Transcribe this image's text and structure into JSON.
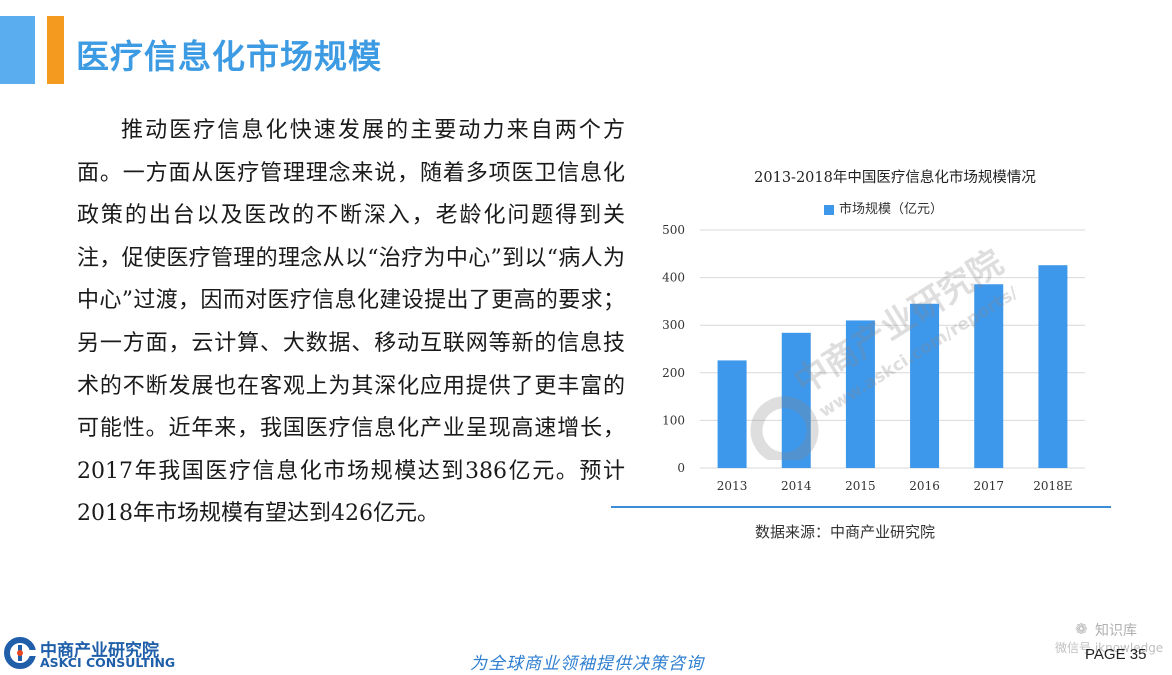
{
  "header": {
    "title": "医疗信息化市场规模"
  },
  "body": {
    "paragraph": "推动医疗信息化快速发展的主要动力来自两个方面。一方面从医疗管理理念来说，随着多项医卫信息化政策的出台以及医改的不断深入，老龄化问题得到关注，促使医疗管理的理念从以“治疗为中心”到以“病人为中心”过渡，因而对医疗信息化建设提出了更高的要求；另一方面，云计算、大数据、移动互联网等新的信息技术的不断发展也在客观上为其深化应用提供了更丰富的可能性。近年来，我国医疗信息化产业呈现高速增长，2017年我国医疗信息化市场规模达到386亿元。预计2018年市场规模有望达到426亿元。"
  },
  "chart_data": {
    "type": "bar",
    "title": "2013-2018年中国医疗信息化市场规模情况",
    "categories": [
      "2013",
      "2014",
      "2015",
      "2016",
      "2017",
      "2018E"
    ],
    "series": [
      {
        "name": "市场规模（亿元）",
        "values": [
          226,
          284,
          310,
          345,
          386,
          426
        ],
        "color": "#3d97ea"
      }
    ],
    "ylim": [
      0,
      500
    ],
    "yticks": [
      0,
      100,
      200,
      300,
      400,
      500
    ],
    "grid": true,
    "legend_position": "top"
  },
  "source": {
    "text": "数据来源：中商产业研究院"
  },
  "watermark": {
    "cn": "中商产业研究院",
    "url": "www.askci.com/reports/"
  },
  "footer": {
    "logo_cn": "中商产业研究院",
    "logo_en": "ASKCI CONSULTING",
    "slogan": "为全球商业领袖提供决策咨询",
    "page": "PAGE  35",
    "badge": "知识库",
    "wechat": "微信号 iknowledge"
  }
}
